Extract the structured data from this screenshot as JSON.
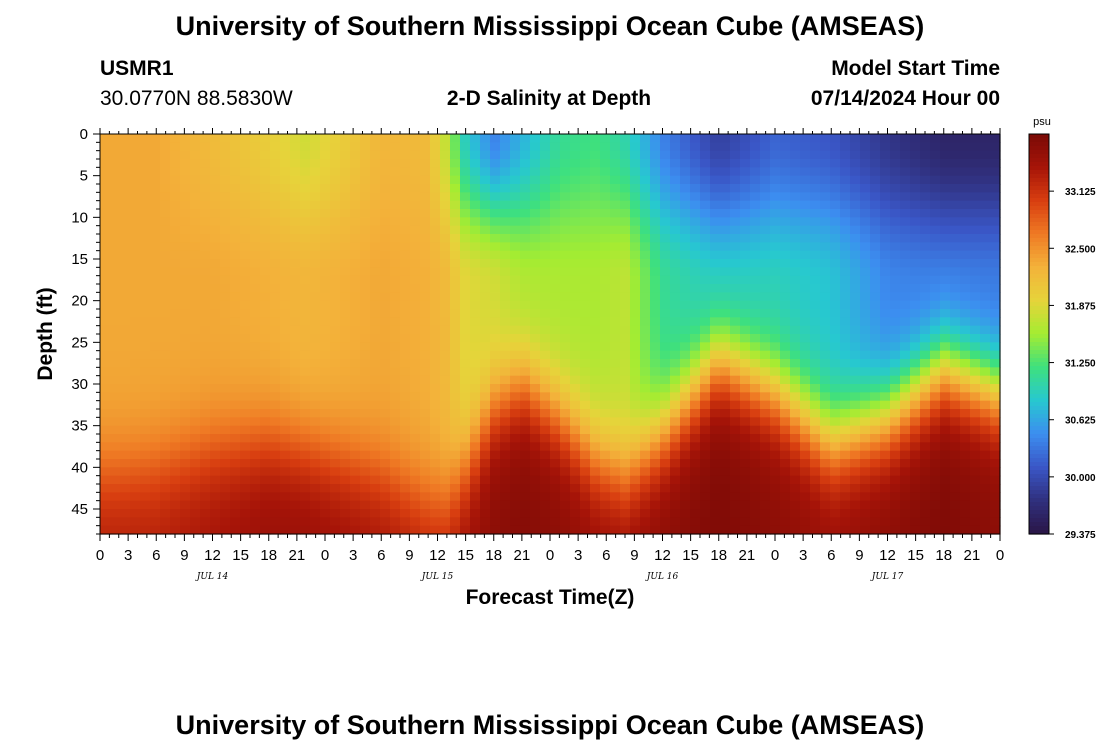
{
  "title": "University of Southern Mississippi Ocean Cube (AMSEAS)",
  "footer_title": "University of Southern Mississippi Ocean Cube (AMSEAS)",
  "station": {
    "name": "USMR1",
    "coords": "30.0770N  88.5830W"
  },
  "model_start": {
    "label": "Model Start Time",
    "value": "07/14/2024 Hour 00"
  },
  "chart_data": {
    "type": "heatmap",
    "title": "2-D Salinity at Depth",
    "xlabel": "Forecast Time(Z)",
    "ylabel": "Depth (ft)",
    "x_range_hours": [
      0,
      96
    ],
    "x_ticks": [
      "0",
      "3",
      "6",
      "9",
      "12",
      "15",
      "18",
      "21",
      "0",
      "3",
      "6",
      "9",
      "12",
      "15",
      "18",
      "21",
      "0",
      "3",
      "6",
      "9",
      "12",
      "15",
      "18",
      "21",
      "0",
      "3",
      "6",
      "9",
      "12",
      "15",
      "18",
      "21",
      "0"
    ],
    "date_labels": [
      {
        "label": "JUL 14",
        "hour": 12
      },
      {
        "label": "JUL 15",
        "hour": 36
      },
      {
        "label": "JUL 16",
        "hour": 60
      },
      {
        "label": "JUL 17",
        "hour": 84
      }
    ],
    "y_range_ft": [
      0,
      48
    ],
    "y_ticks": [
      "0",
      "5",
      "10",
      "15",
      "20",
      "25",
      "30",
      "35",
      "40",
      "45"
    ],
    "colorbar": {
      "unit": "psu",
      "range": [
        29.375,
        33.75
      ],
      "ticks": [
        "33.125",
        "32.500",
        "31.875",
        "31.250",
        "30.625",
        "30.000",
        "29.375"
      ],
      "colors": [
        "#2a1546",
        "#30307e",
        "#3a56c6",
        "#3c8ef0",
        "#27c8d0",
        "#3ee07e",
        "#a4ec32",
        "#e6d43a",
        "#f3b23a",
        "#ef7a24",
        "#d83e10",
        "#a61408",
        "#7a0a06"
      ]
    },
    "salinity_keyframes": [
      {
        "hour": 0,
        "top": 32.35,
        "mid": 32.35,
        "pycno_ft": 41,
        "bottom": 33.3
      },
      {
        "hour": 6,
        "top": 32.35,
        "mid": 32.35,
        "pycno_ft": 40,
        "bottom": 33.3
      },
      {
        "hour": 12,
        "top": 32.2,
        "mid": 32.35,
        "pycno_ft": 38,
        "bottom": 33.4
      },
      {
        "hour": 18,
        "top": 32.0,
        "mid": 32.3,
        "pycno_ft": 37,
        "bottom": 33.5
      },
      {
        "hour": 22,
        "top": 31.8,
        "mid": 32.25,
        "pycno_ft": 38,
        "bottom": 33.5
      },
      {
        "hour": 30,
        "top": 32.25,
        "mid": 32.35,
        "pycno_ft": 41,
        "bottom": 33.4
      },
      {
        "hour": 35,
        "top": 32.2,
        "mid": 32.3,
        "pycno_ft": 44,
        "bottom": 33.3
      },
      {
        "hour": 37,
        "top": 31.7,
        "mid": 32.2,
        "pycno_ft": 44,
        "bottom": 33.3
      },
      {
        "hour": 39,
        "top": 30.9,
        "mid": 31.9,
        "pycno_ft": 40,
        "bottom": 33.45
      },
      {
        "hour": 42,
        "top": 30.4,
        "mid": 31.8,
        "pycno_ft": 33,
        "bottom": 33.6
      },
      {
        "hour": 45,
        "top": 30.7,
        "mid": 31.6,
        "pycno_ft": 30,
        "bottom": 33.65
      },
      {
        "hour": 49,
        "top": 31.1,
        "mid": 31.6,
        "pycno_ft": 34,
        "bottom": 33.6
      },
      {
        "hour": 53,
        "top": 31.2,
        "mid": 31.6,
        "pycno_ft": 39,
        "bottom": 33.5
      },
      {
        "hour": 56,
        "top": 31.0,
        "mid": 31.7,
        "pycno_ft": 41,
        "bottom": 33.5
      },
      {
        "hour": 60,
        "top": 30.4,
        "mid": 31.1,
        "pycno_ft": 36,
        "bottom": 33.6
      },
      {
        "hour": 66,
        "top": 29.9,
        "mid": 30.8,
        "pycno_ft": 27,
        "bottom": 33.7
      },
      {
        "hour": 72,
        "top": 30.2,
        "mid": 30.9,
        "pycno_ft": 31,
        "bottom": 33.6
      },
      {
        "hour": 78,
        "top": 30.1,
        "mid": 30.8,
        "pycno_ft": 37,
        "bottom": 33.5
      },
      {
        "hour": 84,
        "top": 29.8,
        "mid": 30.4,
        "pycno_ft": 34,
        "bottom": 33.6
      },
      {
        "hour": 90,
        "top": 29.6,
        "mid": 30.3,
        "pycno_ft": 28,
        "bottom": 33.7
      },
      {
        "hour": 96,
        "top": 29.6,
        "mid": 30.3,
        "pycno_ft": 31,
        "bottom": 33.6
      }
    ]
  }
}
